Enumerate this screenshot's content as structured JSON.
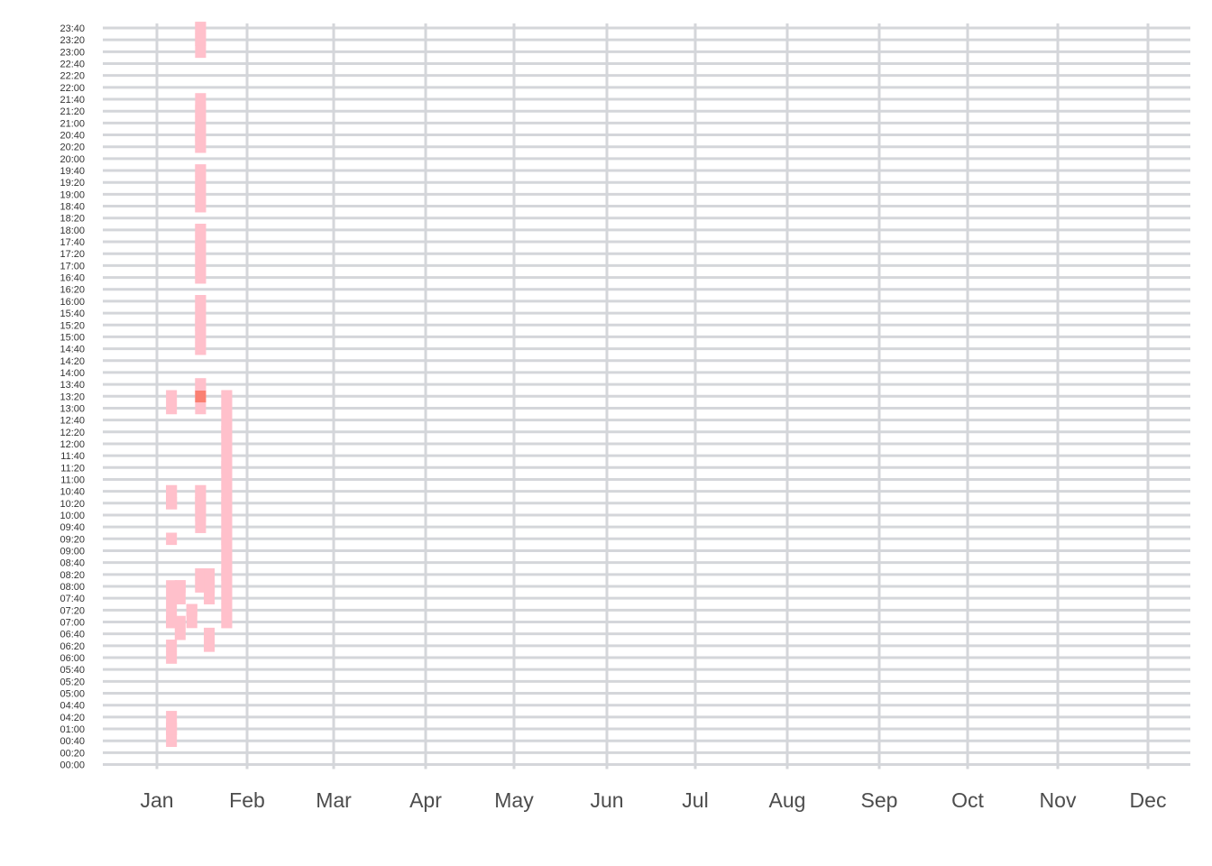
{
  "chart_data": {
    "type": "heatmap",
    "title": "",
    "xlabel": "",
    "ylabel": "",
    "x_tick_labels": [
      "Jan",
      "Feb",
      "Mar",
      "Apr",
      "May",
      "Jun",
      "Jul",
      "Aug",
      "Sep",
      "Oct",
      "Nov",
      "Dec"
    ],
    "y_tick_labels": [
      "00:00",
      "00:20",
      "00:40",
      "01:00",
      "04:20",
      "04:40",
      "05:00",
      "05:20",
      "05:40",
      "06:00",
      "06:20",
      "06:40",
      "07:00",
      "07:20",
      "07:40",
      "08:00",
      "08:20",
      "08:40",
      "09:00",
      "09:20",
      "09:40",
      "10:00",
      "10:20",
      "10:40",
      "11:00",
      "11:20",
      "11:40",
      "12:00",
      "12:20",
      "12:40",
      "13:00",
      "13:20",
      "13:40",
      "14:00",
      "14:20",
      "14:40",
      "15:00",
      "15:20",
      "15:40",
      "16:00",
      "16:20",
      "16:40",
      "17:00",
      "17:20",
      "17:40",
      "18:00",
      "18:20",
      "18:40",
      "19:00",
      "19:20",
      "19:40",
      "20:00",
      "20:20",
      "20:40",
      "21:00",
      "21:20",
      "21:40",
      "22:00",
      "22:20",
      "22:40",
      "23:00",
      "23:20",
      "23:40"
    ],
    "colors": {
      "level_1": "#ffc0cb",
      "level_2": "#fa8072",
      "level_3": "#ff5a46",
      "level_4": "#ff0000",
      "grid": "#d4d6da"
    },
    "grid": true,
    "legend": "none",
    "levels": [
      [
        "Jan 6",
        5,
        1
      ],
      [
        "Jan 6",
        6,
        1
      ],
      [
        "Jan 6",
        8,
        1
      ],
      [
        "Jan 6",
        9,
        1
      ],
      [
        "Jan 6",
        20,
        1
      ],
      [
        "Jan 6",
        24,
        1
      ],
      [
        "Jan 6",
        28,
        1
      ],
      [
        "Jan 6",
        29,
        1
      ],
      [
        "Jan 6",
        30,
        1
      ],
      [
        "Jan 6",
        33,
        1
      ],
      [
        "Jan 6",
        34,
        1
      ],
      [
        "Jan 6",
        45,
        1
      ],
      [
        "Jan 6",
        50,
        1
      ],
      [
        "Jan 6",
        51,
        1
      ],
      [
        "Jan 6",
        52,
        1
      ],
      [
        "Jan 6",
        53,
        1
      ],
      [
        "Jan 6",
        54,
        1
      ],
      [
        "Jan 6",
        70,
        1
      ],
      [
        "Jan 6",
        71,
        1
      ],
      [
        "Jan 9",
        26,
        1
      ],
      [
        "Jan 9",
        27,
        1
      ],
      [
        "Jan 9",
        33,
        1
      ],
      [
        "Jan 9",
        34,
        1
      ],
      [
        "Jan 9",
        35,
        1
      ],
      [
        "Jan 13",
        29,
        1
      ],
      [
        "Jan 13",
        30,
        1
      ],
      [
        "Jan 13",
        31,
        1
      ],
      [
        "Jan 16",
        34,
        1
      ],
      [
        "Jan 16",
        35,
        1
      ],
      [
        "Jan 16",
        36,
        1
      ],
      [
        "Jan 16",
        37,
        1
      ],
      [
        "Jan 16",
        47,
        1
      ],
      [
        "Jan 16",
        48,
        1
      ],
      [
        "Jan 16",
        49,
        1
      ],
      [
        "Jan 16",
        50,
        1
      ],
      [
        "Jan 16",
        51,
        1
      ],
      [
        "Jan 16",
        52,
        1
      ],
      [
        "Jan 16",
        53,
        1
      ],
      [
        "Jan 16",
        54,
        1
      ],
      [
        "Jan 16",
        70,
        1
      ],
      [
        "Jan 16",
        71,
        1
      ],
      [
        "Jan 16",
        72,
        1
      ],
      [
        "Jan 16",
        73,
        2
      ],
      [
        "Jan 16",
        74,
        1
      ],
      [
        "Jan 16",
        75,
        1
      ],
      [
        "Jan 16",
        81,
        1
      ],
      [
        "Jan 16",
        82,
        1
      ],
      [
        "Jan 16",
        83,
        1
      ],
      [
        "Jan 16",
        84,
        1
      ],
      [
        "Jan 16",
        85,
        1
      ],
      [
        "Jan 16",
        86,
        1
      ],
      [
        "Jan 16",
        87,
        1
      ],
      [
        "Jan 16",
        88,
        1
      ],
      [
        "Jan 16",
        89,
        1
      ],
      [
        "Jan 16",
        90,
        1
      ],
      [
        "Jan 16",
        91,
        1
      ],
      [
        "Jan 16",
        95,
        1
      ],
      [
        "Jan 16",
        96,
        1
      ],
      [
        "Jan 16",
        97,
        1
      ],
      [
        "Jan 16",
        98,
        1
      ],
      [
        "Jan 16",
        100,
        1
      ],
      [
        "Jan 16",
        101,
        1
      ],
      [
        "Jan 16",
        102,
        1
      ],
      [
        "Jan 16",
        103,
        1
      ],
      [
        "Jan 16",
        104,
        1
      ],
      [
        "Jan 16",
        105,
        1
      ],
      [
        "Jan 16",
        109,
        1
      ],
      [
        "Jan 16",
        110,
        1
      ],
      [
        "Jan 16",
        111,
        1
      ],
      [
        "Jan 16",
        112,
        1
      ],
      [
        "Jan 16",
        113,
        1
      ],
      [
        "Jan 16",
        114,
        1
      ],
      [
        "Jan 16",
        115,
        1
      ],
      [
        "Jan 16",
        116,
        1
      ],
      [
        "Jan 16",
        120,
        1
      ],
      [
        "Jan 16",
        121,
        1
      ],
      [
        "Jan 16",
        122,
        1
      ],
      [
        "Jan 16",
        123,
        1
      ],
      [
        "Jan 16",
        124,
        1
      ],
      [
        "Jan 16",
        125,
        1
      ],
      [
        "Jan 16",
        126,
        1
      ],
      [
        "Jan 16",
        127,
        1
      ],
      [
        "Jan 16",
        128,
        1
      ],
      [
        "Jan 16",
        129,
        1
      ],
      [
        "Jan 16",
        140,
        1
      ],
      [
        "Jan 16",
        141,
        1
      ],
      [
        "Jan 16",
        142,
        1
      ],
      [
        "Jan 16",
        143,
        1
      ],
      [
        "Jan 16",
        144,
        1
      ],
      [
        "Jan 19",
        24,
        1
      ],
      [
        "Jan 19",
        25,
        1
      ],
      [
        "Jan 19",
        33,
        1
      ],
      [
        "Jan 19",
        34,
        1
      ],
      [
        "Jan 19",
        35,
        1
      ],
      [
        "Jan 19",
        36,
        1
      ],
      [
        "Jan 25",
        28,
        1
      ],
      [
        "Jan 25",
        29,
        1
      ],
      [
        "Jan 25",
        30,
        1
      ],
      [
        "Jan 25",
        31,
        1
      ],
      [
        "Jan 25",
        32,
        1
      ],
      [
        "Jan 25",
        33,
        1
      ],
      [
        "Jan 25",
        34,
        1
      ],
      [
        "Jan 25",
        35,
        1
      ],
      [
        "Jan 25",
        36,
        1
      ],
      [
        "Jan 25",
        37,
        1
      ],
      [
        "Jan 25",
        38,
        1
      ],
      [
        "Jan 25",
        39,
        1
      ],
      [
        "Jan 25",
        40,
        1
      ],
      [
        "Jan 25",
        41,
        1
      ],
      [
        "Jan 25",
        42,
        1
      ],
      [
        "Jan 25",
        43,
        1
      ],
      [
        "Jan 25",
        44,
        1
      ],
      [
        "Jan 25",
        45,
        1
      ],
      [
        "Jan 25",
        46,
        1
      ],
      [
        "Jan 25",
        47,
        1
      ],
      [
        "Jan 25",
        48,
        1
      ],
      [
        "Jan 25",
        49,
        1
      ],
      [
        "Jan 25",
        50,
        1
      ],
      [
        "Jan 25",
        51,
        1
      ],
      [
        "Jan 25",
        52,
        1
      ],
      [
        "Jan 25",
        53,
        1
      ],
      [
        "Jan 25",
        54,
        1
      ],
      [
        "Jan 25",
        55,
        1
      ],
      [
        "Jan 25",
        56,
        1
      ],
      [
        "Jan 25",
        57,
        1
      ],
      [
        "Jan 25",
        58,
        1
      ],
      [
        "Jan 25",
        59,
        1
      ],
      [
        "Jan 25",
        60,
        1
      ],
      [
        "Jan 25",
        61,
        1
      ],
      [
        "Jan 25",
        62,
        1
      ],
      [
        "Jan 25",
        63,
        1
      ],
      [
        "Jan 25",
        64,
        1
      ],
      [
        "Jan 25",
        65,
        1
      ],
      [
        "Jan 25",
        66,
        1
      ],
      [
        "Jan 25",
        67,
        1
      ],
      [
        "Jan 25",
        68,
        1
      ],
      [
        "Jan 25",
        69,
        1
      ],
      [
        "Jan 25",
        70,
        1
      ],
      [
        "Jan 25",
        71,
        1
      ],
      [
        "Jan 25",
        72,
        1
      ]
    ]
  }
}
